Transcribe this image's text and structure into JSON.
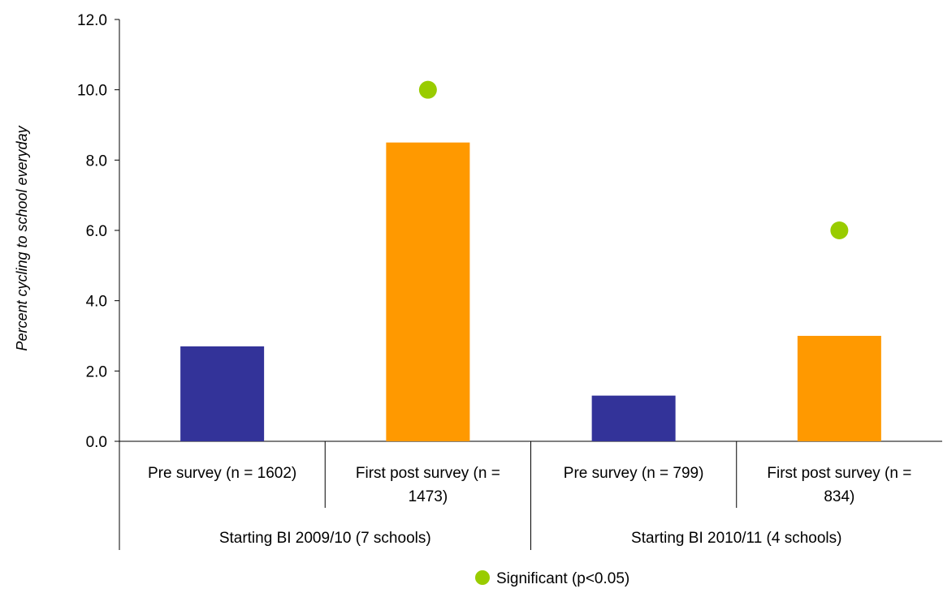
{
  "chart_data": {
    "type": "bar",
    "title": "",
    "xlabel": "",
    "ylabel": "Percent cycling to school everyday",
    "ylim": [
      0,
      12
    ],
    "yticks": [
      "0.0",
      "2.0",
      "4.0",
      "6.0",
      "8.0",
      "10.0",
      "12.0"
    ],
    "grid": false,
    "groups": [
      {
        "label": "Starting BI 2009/10 (7 schools)",
        "bars": [
          {
            "label": [
              "Pre survey (n = 1602)"
            ],
            "value": 2.7,
            "color": "#333399",
            "significance_marker": null
          },
          {
            "label": [
              "First post survey (n =",
              "1473)"
            ],
            "value": 8.5,
            "color": "#FF9900",
            "significance_marker": 10.0
          }
        ]
      },
      {
        "label": "Starting BI 2010/11 (4 schools)",
        "bars": [
          {
            "label": [
              "Pre survey (n = 799)"
            ],
            "value": 1.3,
            "color": "#333399",
            "significance_marker": null
          },
          {
            "label": [
              "First post survey (n =",
              "834)"
            ],
            "value": 3.0,
            "color": "#FF9900",
            "significance_marker": 6.0
          }
        ]
      }
    ],
    "marker_color": "#99CC00",
    "legend": {
      "position": "bottom",
      "entries": [
        {
          "label": "Significant (p<0.05)",
          "color": "#99CC00",
          "shape": "circle"
        }
      ]
    }
  }
}
